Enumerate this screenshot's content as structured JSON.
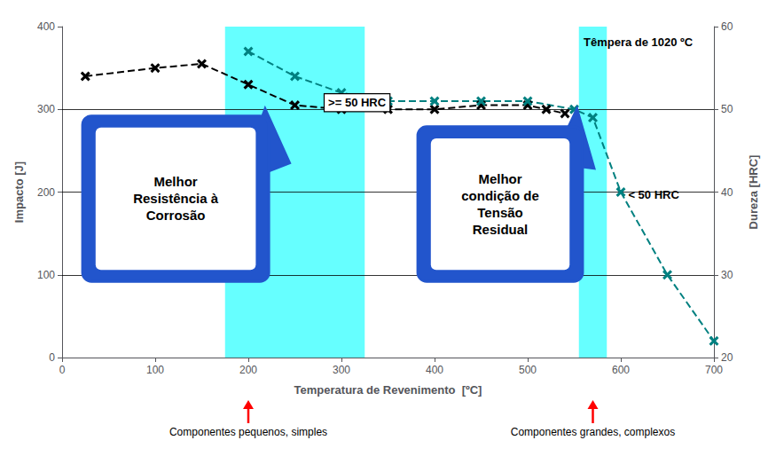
{
  "chart_data": {
    "type": "line",
    "title": "Têmpera de 1020 ºC",
    "xlabel": "Temperatura de Revenimento  [ºC]",
    "ylabel": "Impacto [J]",
    "y2label": "Dureza [HRC]",
    "xlim": [
      0,
      700
    ],
    "xticks": [
      0,
      100,
      200,
      300,
      400,
      500,
      600,
      700
    ],
    "ylim": [
      0,
      400
    ],
    "yticks": [
      0,
      100,
      200,
      300,
      400
    ],
    "y2lim": [
      20,
      60
    ],
    "y2ticks": [
      20,
      30,
      40,
      50,
      60
    ],
    "grid": false,
    "hlines": [
      100,
      200,
      300
    ],
    "bands": [
      {
        "x": [
          175,
          325
        ],
        "color": "#00FFFF"
      },
      {
        "x": [
          555,
          585
        ],
        "color": "#00FFFF"
      }
    ],
    "series": [
      {
        "x": [
          25,
          100,
          150,
          200,
          250,
          300,
          350,
          400,
          450,
          500,
          520,
          540
        ],
        "values": [
          340,
          350,
          355,
          330,
          305,
          300,
          300,
          300,
          305,
          305,
          300,
          295
        ],
        "color": "#000000",
        "marker": "x",
        "line_style": "dashed"
      },
      {
        "x": [
          200,
          250,
          300,
          350,
          400,
          450,
          500,
          550,
          570,
          600,
          650,
          700
        ],
        "values": [
          57,
          54,
          52,
          51,
          51,
          51,
          51,
          50,
          49,
          40,
          30,
          22
        ],
        "color": "#008080",
        "marker": "x",
        "line_style": "dashed",
        "axis": "y2"
      }
    ],
    "annotations": [
      ">= 50 HRC",
      "< 50 HRC"
    ],
    "callouts": [
      {
        "text": "Melhor\nResistência à\nCorrosão",
        "color": "#2255CC"
      },
      {
        "text": "Melhor\ncondição de\nTensão\nResidual",
        "color": "#2255CC"
      }
    ],
    "arrows": [
      {
        "x": 200,
        "label": "Componentes pequenos, simples",
        "color": "#FF0000"
      },
      {
        "x": 570,
        "label": "Componentes grandes, complexos",
        "color": "#FF0000"
      }
    ]
  }
}
